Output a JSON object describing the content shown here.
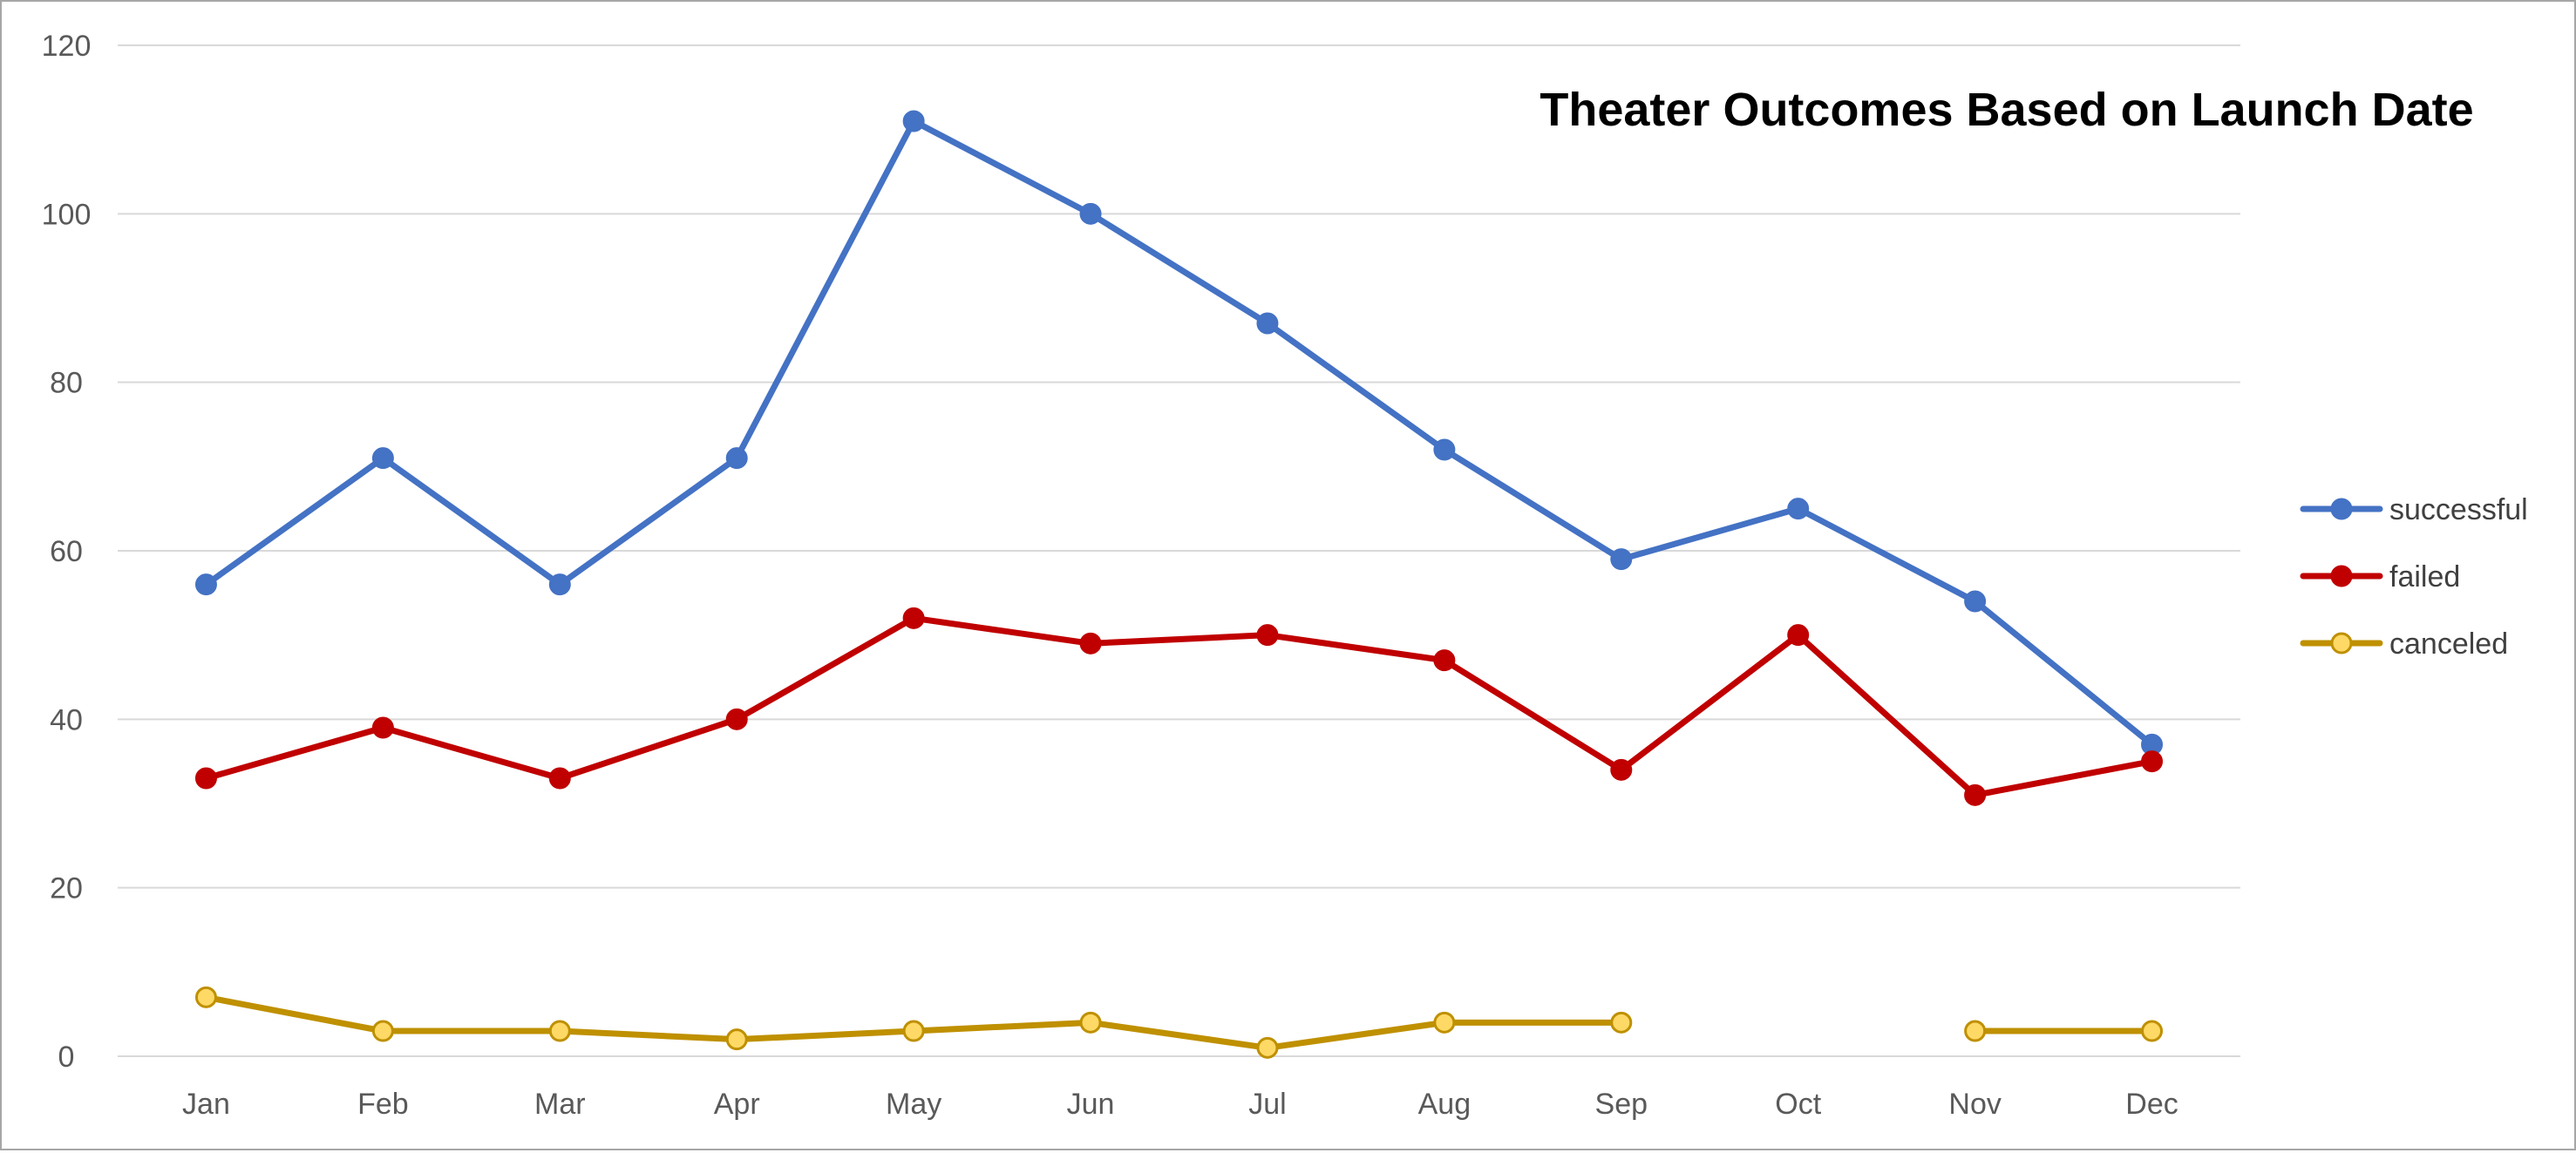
{
  "chart_data": {
    "type": "line",
    "title": "Theater Outcomes Based on Launch Date",
    "xlabel": "",
    "ylabel": "",
    "categories": [
      "Jan",
      "Feb",
      "Mar",
      "Apr",
      "May",
      "Jun",
      "Jul",
      "Aug",
      "Sep",
      "Oct",
      "Nov",
      "Dec"
    ],
    "ylim": [
      0,
      120
    ],
    "yticks": [
      0,
      20,
      40,
      60,
      80,
      100,
      120
    ],
    "grid": true,
    "legend_position": "right",
    "series": [
      {
        "name": "successful",
        "color": "#4472C4",
        "values": [
          56,
          71,
          56,
          71,
          111,
          100,
          87,
          72,
          59,
          65,
          54,
          37
        ]
      },
      {
        "name": "failed",
        "color": "#C00000",
        "values": [
          33,
          39,
          33,
          40,
          52,
          49,
          50,
          47,
          34,
          50,
          31,
          35
        ]
      },
      {
        "name": "canceled",
        "color": "#BF9000",
        "marker_fill": "#FFD966",
        "values": [
          7,
          3,
          3,
          2,
          3,
          4,
          1,
          4,
          4,
          null,
          3,
          3
        ]
      }
    ]
  }
}
